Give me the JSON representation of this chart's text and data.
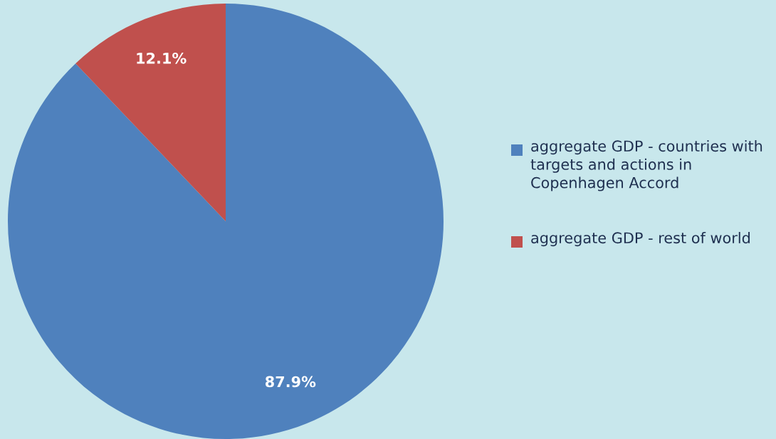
{
  "chart_data": {
    "type": "pie",
    "categories": [
      "aggregate GDP - countries with targets and actions in Copenhagen Accord",
      "aggregate GDP - rest of world"
    ],
    "values": [
      87.9,
      12.1
    ],
    "colors": [
      "#4f81bd",
      "#c0504d"
    ],
    "value_labels": [
      "87.9%",
      "12.1%"
    ],
    "legend": "right"
  }
}
